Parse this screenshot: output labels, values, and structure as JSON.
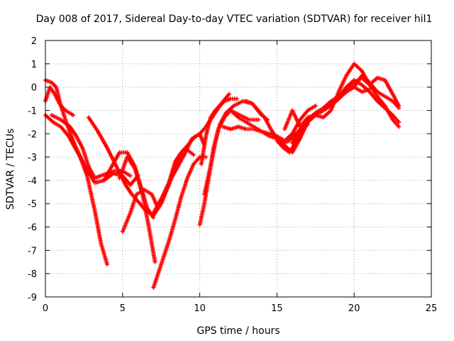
{
  "chart_data": {
    "type": "scatter",
    "title": "Day 008 of 2017, Sidereal Day-to-day VTEC variation (SDTVAR) for receiver hil1",
    "xlabel": "GPS time / hours",
    "ylabel": "SDTVAR / TECUs",
    "xlim": [
      0,
      25
    ],
    "ylim": [
      -9,
      2
    ],
    "xticks": [
      0,
      5,
      10,
      15,
      20,
      25
    ],
    "yticks": [
      -9,
      -8,
      -7,
      -6,
      -5,
      -4,
      -3,
      -2,
      -1,
      0,
      1,
      2
    ],
    "grid": true,
    "marker": "plus",
    "color": "#ff0000",
    "series": [
      {
        "x": [
          0.0,
          0.3,
          0.6,
          0.9,
          1.3,
          1.8
        ],
        "y": [
          -0.6,
          0.0,
          -0.3,
          -0.7,
          -1.0,
          -1.2
        ]
      },
      {
        "x": [
          0.0,
          0.4,
          0.7,
          1.0,
          1.4,
          1.8,
          2.2,
          2.7,
          3.2,
          3.6,
          4.0
        ],
        "y": [
          0.3,
          0.2,
          0.0,
          -0.8,
          -1.6,
          -2.3,
          -2.9,
          -3.8,
          -5.3,
          -6.7,
          -7.6
        ]
      },
      {
        "x": [
          0.0,
          0.5,
          1.0,
          1.5,
          2.0,
          2.6,
          3.2,
          3.8,
          4.4,
          5.0,
          5.5,
          6.0
        ],
        "y": [
          -1.2,
          -1.5,
          -1.7,
          -2.1,
          -2.7,
          -3.4,
          -4.1,
          -4.0,
          -3.7,
          -3.8,
          -4.2,
          -3.8
        ]
      },
      {
        "x": [
          0.4,
          1.0,
          1.6,
          2.0,
          2.4,
          2.8,
          3.2,
          3.6,
          4.0,
          4.5,
          5.0,
          5.5
        ],
        "y": [
          -1.2,
          -1.4,
          -1.7,
          -2.1,
          -2.6,
          -3.4,
          -3.9,
          -3.8,
          -3.7,
          -3.6,
          -3.6,
          -3.8
        ]
      },
      {
        "x": [
          2.8,
          3.4,
          4.0,
          4.6,
          5.2,
          5.6,
          6.0,
          6.5,
          7.0,
          7.4,
          8.0,
          8.4,
          8.8,
          9.2,
          9.6
        ],
        "y": [
          -1.3,
          -1.9,
          -2.6,
          -3.4,
          -4.2,
          -4.6,
          -4.9,
          -5.3,
          -5.5,
          -5.1,
          -4.2,
          -3.4,
          -3.0,
          -2.7,
          -2.9
        ]
      },
      {
        "x": [
          3.8,
          4.3,
          4.8,
          5.3,
          5.8,
          6.2,
          6.6,
          7.0
        ],
        "y": [
          -4.0,
          -3.4,
          -2.8,
          -2.8,
          -3.4,
          -4.3,
          -5.2,
          -5.6
        ]
      },
      {
        "x": [
          4.8,
          5.3,
          5.8,
          6.3,
          6.7,
          7.1
        ],
        "y": [
          -3.9,
          -3.0,
          -3.5,
          -4.6,
          -6.0,
          -7.5
        ]
      },
      {
        "x": [
          5.0,
          5.5,
          5.9,
          6.4,
          6.9,
          7.3
        ],
        "y": [
          -6.2,
          -5.4,
          -4.6,
          -4.4,
          -4.6,
          -5.2
        ]
      },
      {
        "x": [
          7.0,
          7.5,
          8.0,
          8.4,
          8.8,
          9.2,
          9.6,
          10.0,
          10.4
        ],
        "y": [
          -8.6,
          -7.6,
          -6.6,
          -5.7,
          -4.7,
          -3.9,
          -3.3,
          -3.0,
          -3.0
        ]
      },
      {
        "x": [
          7.0,
          7.5,
          8.0,
          8.5,
          9.0,
          9.5,
          10.0,
          10.3
        ],
        "y": [
          -5.4,
          -4.8,
          -4.1,
          -3.5,
          -2.9,
          -2.2,
          -2.0,
          -2.5
        ]
      },
      {
        "x": [
          7.5,
          8.0,
          8.4,
          8.8,
          9.2,
          9.6,
          10.0,
          10.4,
          10.8,
          11.2,
          11.6,
          12.0,
          12.4
        ],
        "y": [
          -5.0,
          -4.1,
          -3.2,
          -2.8,
          -2.5,
          -2.2,
          -2.0,
          -1.7,
          -1.3,
          -0.9,
          -0.6,
          -0.5,
          -0.5
        ]
      },
      {
        "x": [
          10.0,
          10.3,
          10.6,
          10.9,
          11.2,
          11.6,
          12.0,
          12.6,
          13.2,
          13.8
        ],
        "y": [
          -5.9,
          -5.0,
          -3.8,
          -2.6,
          -1.8,
          -1.3,
          -1.0,
          -1.2,
          -1.4,
          -1.4
        ]
      },
      {
        "x": [
          10.3,
          10.7,
          11.0,
          11.3,
          11.7,
          12.2,
          12.8,
          13.4,
          14.0,
          14.4
        ],
        "y": [
          -4.6,
          -3.4,
          -2.4,
          -1.6,
          -1.1,
          -0.8,
          -0.6,
          -0.7,
          -1.2,
          -1.4
        ]
      },
      {
        "x": [
          10.1,
          10.4,
          10.7,
          11.0,
          11.4,
          11.9
        ],
        "y": [
          -3.3,
          -2.1,
          -1.3,
          -1.0,
          -0.7,
          -0.3
        ]
      },
      {
        "x": [
          11.5,
          12.0,
          12.5,
          13.0,
          13.5,
          14.0,
          14.5,
          15.0,
          15.5,
          16.0,
          16.5,
          17.0,
          17.5
        ],
        "y": [
          -1.7,
          -1.8,
          -1.7,
          -1.8,
          -1.8,
          -1.9,
          -2.0,
          -2.1,
          -2.3,
          -2.0,
          -1.4,
          -1.0,
          -0.8
        ]
      },
      {
        "x": [
          12.0,
          12.5,
          13.0,
          13.5,
          14.0,
          14.5,
          15.0,
          15.5,
          16.0,
          16.5,
          17.0
        ],
        "y": [
          -1.0,
          -1.3,
          -1.5,
          -1.7,
          -1.9,
          -2.1,
          -2.2,
          -2.5,
          -2.8,
          -2.2,
          -1.5
        ]
      },
      {
        "x": [
          13.0,
          13.4,
          13.8,
          14.2,
          14.6,
          15.0,
          15.4,
          15.8,
          16.2,
          16.6,
          17.0
        ],
        "y": [
          -0.6,
          -0.7,
          -1.0,
          -1.3,
          -1.8,
          -2.2,
          -2.4,
          -2.3,
          -2.0,
          -1.8,
          -1.6
        ]
      },
      {
        "x": [
          15.0,
          15.4,
          15.8,
          16.2,
          16.6,
          17.0,
          17.5,
          18.0,
          18.5,
          19.0,
          19.5,
          20.0,
          20.5,
          21.0
        ],
        "y": [
          -2.3,
          -2.6,
          -2.8,
          -2.4,
          -1.9,
          -1.5,
          -1.2,
          -1.0,
          -0.8,
          -0.5,
          -0.2,
          0.0,
          -0.2,
          -0.1
        ]
      },
      {
        "x": [
          15.5,
          16.0,
          16.5,
          17.0,
          17.5,
          18.0,
          18.5,
          19.0,
          19.5,
          20.0,
          20.5,
          21.0,
          21.5,
          22.0,
          22.5,
          22.9
        ],
        "y": [
          -1.8,
          -1.0,
          -1.7,
          -1.3,
          -1.2,
          -1.3,
          -1.0,
          -0.2,
          0.5,
          1.0,
          0.7,
          0.1,
          -0.4,
          -0.8,
          -1.4,
          -1.7
        ]
      },
      {
        "x": [
          16.0,
          16.5,
          17.0,
          17.5,
          18.0,
          18.5,
          19.0,
          19.5,
          20.0,
          20.5,
          21.0,
          21.5,
          22.0,
          22.5,
          22.9
        ],
        "y": [
          -2.4,
          -1.8,
          -1.4,
          -1.1,
          -0.9,
          -0.6,
          -0.4,
          0.0,
          0.3,
          0.1,
          -0.2,
          -0.6,
          -0.9,
          -1.2,
          -1.5
        ]
      },
      {
        "x": [
          17.0,
          17.5,
          18.0,
          18.5,
          19.0,
          19.5,
          20.0,
          20.5,
          21.0,
          21.5,
          22.0,
          22.5,
          22.9
        ],
        "y": [
          -1.5,
          -1.2,
          -1.0,
          -0.7,
          -0.4,
          -0.1,
          0.2,
          0.4,
          0.1,
          0.4,
          0.3,
          -0.3,
          -0.8
        ]
      },
      {
        "x": [
          18.0,
          18.5,
          19.0,
          19.5,
          20.0,
          20.5,
          21.0,
          21.5,
          22.0,
          22.5,
          22.9
        ],
        "y": [
          -1.0,
          -0.8,
          -0.5,
          -0.2,
          0.0,
          0.5,
          0.2,
          -0.2,
          -0.4,
          -0.6,
          -0.9
        ]
      }
    ]
  }
}
